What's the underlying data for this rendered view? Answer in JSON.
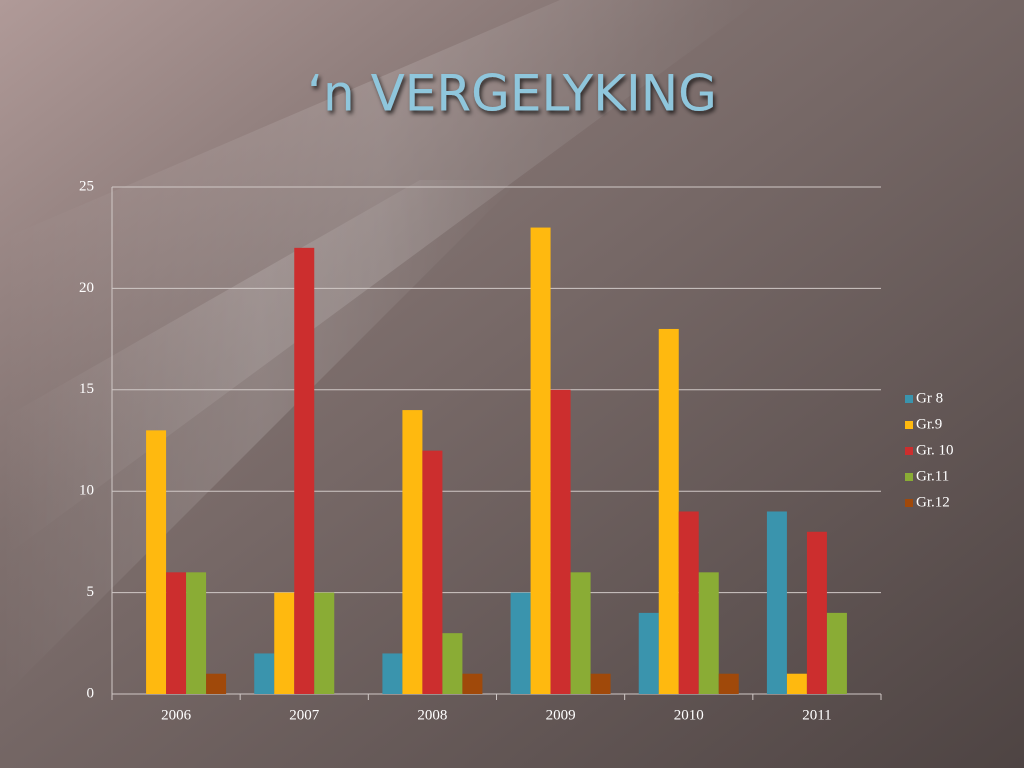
{
  "chart_data": {
    "type": "bar",
    "title": "‘n VERGELYKING",
    "categories": [
      "2006",
      "2007",
      "2008",
      "2009",
      "2010",
      "2011"
    ],
    "series": [
      {
        "name": "Gr 8",
        "color": "#3a94ad",
        "values": [
          0,
          2,
          2,
          5,
          4,
          9
        ]
      },
      {
        "name": "Gr.9",
        "color": "#ffb90f",
        "values": [
          13,
          5,
          14,
          23,
          18,
          1
        ]
      },
      {
        "name": "Gr. 10",
        "color": "#cc2e2e",
        "values": [
          6,
          22,
          12,
          15,
          9,
          8
        ]
      },
      {
        "name": "Gr.11",
        "color": "#8aac35",
        "values": [
          6,
          5,
          3,
          6,
          6,
          4
        ]
      },
      {
        "name": "Gr.12",
        "color": "#a0490a",
        "values": [
          1,
          0,
          1,
          1,
          1,
          0
        ]
      }
    ],
    "ylim": [
      0,
      25
    ],
    "yticks": [
      0,
      5,
      10,
      15,
      20,
      25
    ],
    "grid": true,
    "legend": "right"
  }
}
